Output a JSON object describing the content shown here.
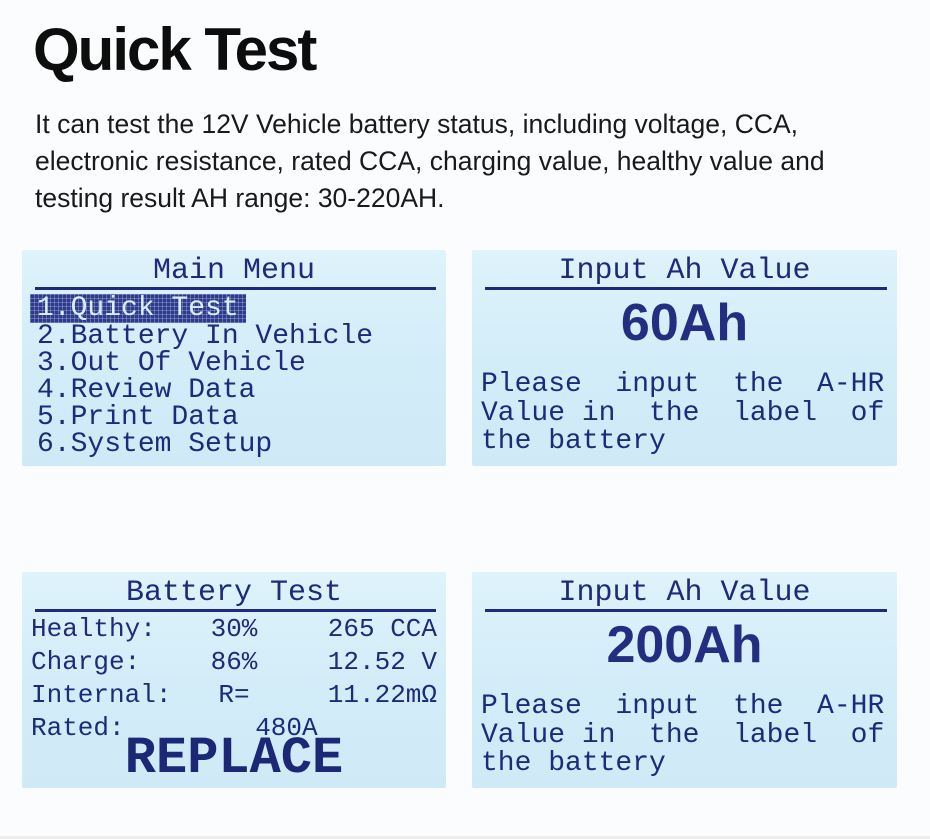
{
  "header": {
    "title": "Quick Test",
    "description": "It can test the 12V Vehicle battery status, including voltage, CCA, electronic resistance, rated CCA, charging value, healthy value and testing result AH range: 30-220AH."
  },
  "colors": {
    "lcd_background": "#d2ecf8",
    "lcd_text_navy": "#1e2a7a",
    "selected_item_background": "#2e3b8c",
    "selected_item_text": "#daeefb"
  },
  "screens": {
    "main_menu": {
      "title": "Main Menu",
      "items": [
        {
          "label": "1.Quick Test",
          "selected": true
        },
        {
          "label": "2.Battery In Vehicle",
          "selected": false
        },
        {
          "label": "3.Out Of Vehicle",
          "selected": false
        },
        {
          "label": "4.Review Data",
          "selected": false
        },
        {
          "label": "5.Print Data",
          "selected": false
        },
        {
          "label": "6.System Setup",
          "selected": false
        }
      ]
    },
    "input_ah_top": {
      "title": "Input Ah Value",
      "value": "60Ah",
      "note": "Please  input  the  A-HR\nValue in  the  label  of\nthe battery"
    },
    "battery_test": {
      "title": "Battery Test",
      "rows": [
        {
          "label": "Healthy:",
          "mid": "30%",
          "right": "265 CCA"
        },
        {
          "label": "Charge:",
          "mid": "86%",
          "right": "12.52 V"
        },
        {
          "label": "Internal:",
          "mid": "R=",
          "right": "11.22mΩ"
        },
        {
          "label": "Rated:",
          "value": "480A"
        }
      ],
      "verdict": "REPLACE"
    },
    "input_ah_bottom": {
      "title": "Input Ah Value",
      "value": "200Ah",
      "note": "Please  input  the  A-HR\nValue in  the  label  of\nthe battery"
    }
  }
}
